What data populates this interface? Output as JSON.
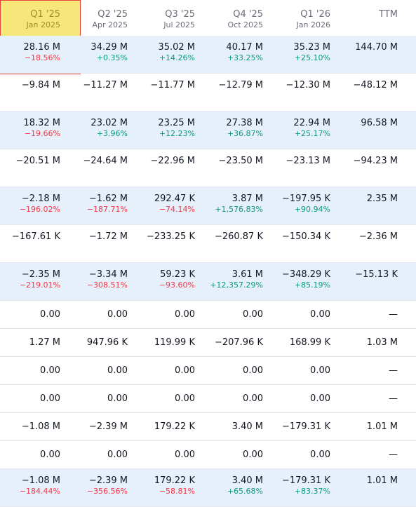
{
  "columns": [
    {
      "title": "Q1 '25",
      "sub": "Jan 2025"
    },
    {
      "title": "Q2 '25",
      "sub": "Apr 2025"
    },
    {
      "title": "Q3 '25",
      "sub": "Jul 2025"
    },
    {
      "title": "Q4 '25",
      "sub": "Oct 2025"
    },
    {
      "title": "Q1 '26",
      "sub": "Jan 2026"
    },
    {
      "title": "TTM",
      "sub": ""
    }
  ],
  "rows": [
    {
      "band": true,
      "cells": [
        {
          "v": "28.16 M",
          "p": "−18.56%",
          "s": "neg"
        },
        {
          "v": "34.29 M",
          "p": "+0.35%",
          "s": "pos"
        },
        {
          "v": "35.02 M",
          "p": "+14.26%",
          "s": "pos"
        },
        {
          "v": "40.17 M",
          "p": "+33.25%",
          "s": "pos"
        },
        {
          "v": "35.23 M",
          "p": "+25.10%",
          "s": "pos"
        },
        {
          "v": "144.70 M",
          "p": "",
          "s": ""
        }
      ]
    },
    {
      "band": false,
      "cells": [
        {
          "v": "−9.84 M"
        },
        {
          "v": "−11.27 M"
        },
        {
          "v": "−11.77 M"
        },
        {
          "v": "−12.79 M"
        },
        {
          "v": "−12.30 M"
        },
        {
          "v": "−48.12 M"
        }
      ]
    },
    {
      "band": true,
      "cells": [
        {
          "v": "18.32 M",
          "p": "−19.66%",
          "s": "neg"
        },
        {
          "v": "23.02 M",
          "p": "+3.96%",
          "s": "pos"
        },
        {
          "v": "23.25 M",
          "p": "+12.23%",
          "s": "pos"
        },
        {
          "v": "27.38 M",
          "p": "+36.87%",
          "s": "pos"
        },
        {
          "v": "22.94 M",
          "p": "+25.17%",
          "s": "pos"
        },
        {
          "v": "96.58 M",
          "p": "",
          "s": ""
        }
      ]
    },
    {
      "band": false,
      "cells": [
        {
          "v": "−20.51 M"
        },
        {
          "v": "−24.64 M"
        },
        {
          "v": "−22.96 M"
        },
        {
          "v": "−23.50 M"
        },
        {
          "v": "−23.13 M"
        },
        {
          "v": "−94.23 M"
        }
      ]
    },
    {
      "band": true,
      "cells": [
        {
          "v": "−2.18 M",
          "p": "−196.02%",
          "s": "neg"
        },
        {
          "v": "−1.62 M",
          "p": "−187.71%",
          "s": "neg"
        },
        {
          "v": "292.47 K",
          "p": "−74.14%",
          "s": "neg"
        },
        {
          "v": "3.87 M",
          "p": "+1,576.83%",
          "s": "pos"
        },
        {
          "v": "−197.95 K",
          "p": "+90.94%",
          "s": "pos"
        },
        {
          "v": "2.35 M",
          "p": "",
          "s": ""
        }
      ]
    },
    {
      "band": false,
      "cells": [
        {
          "v": "−167.61 K"
        },
        {
          "v": "−1.72 M"
        },
        {
          "v": "−233.25 K"
        },
        {
          "v": "−260.87 K"
        },
        {
          "v": "−150.34 K"
        },
        {
          "v": "−2.36 M"
        }
      ]
    },
    {
      "band": true,
      "cells": [
        {
          "v": "−2.35 M",
          "p": "−219.01%",
          "s": "neg"
        },
        {
          "v": "−3.34 M",
          "p": "−308.51%",
          "s": "neg"
        },
        {
          "v": "59.23 K",
          "p": "−93.60%",
          "s": "neg"
        },
        {
          "v": "3.61 M",
          "p": "+12,357.29%",
          "s": "pos"
        },
        {
          "v": "−348.29 K",
          "p": "+85.19%",
          "s": "pos"
        },
        {
          "v": "−15.13 K",
          "p": "",
          "s": ""
        }
      ]
    },
    {
      "band": false,
      "short": true,
      "cells": [
        {
          "v": "0.00"
        },
        {
          "v": "0.00"
        },
        {
          "v": "0.00"
        },
        {
          "v": "0.00"
        },
        {
          "v": "0.00"
        },
        {
          "v": "—"
        }
      ]
    },
    {
      "band": false,
      "short": true,
      "cells": [
        {
          "v": "1.27 M"
        },
        {
          "v": "947.96 K"
        },
        {
          "v": "119.99 K"
        },
        {
          "v": "−207.96 K"
        },
        {
          "v": "168.99 K"
        },
        {
          "v": "1.03 M"
        }
      ]
    },
    {
      "band": false,
      "short": true,
      "cells": [
        {
          "v": "0.00"
        },
        {
          "v": "0.00"
        },
        {
          "v": "0.00"
        },
        {
          "v": "0.00"
        },
        {
          "v": "0.00"
        },
        {
          "v": "—"
        }
      ]
    },
    {
      "band": false,
      "short": true,
      "cells": [
        {
          "v": "0.00"
        },
        {
          "v": "0.00"
        },
        {
          "v": "0.00"
        },
        {
          "v": "0.00"
        },
        {
          "v": "0.00"
        },
        {
          "v": "—"
        }
      ]
    },
    {
      "band": false,
      "short": true,
      "cells": [
        {
          "v": "−1.08 M"
        },
        {
          "v": "−2.39 M"
        },
        {
          "v": "179.22 K"
        },
        {
          "v": "3.40 M"
        },
        {
          "v": "−179.31 K"
        },
        {
          "v": "1.01 M"
        }
      ]
    },
    {
      "band": false,
      "short": true,
      "cells": [
        {
          "v": "0.00"
        },
        {
          "v": "0.00"
        },
        {
          "v": "0.00"
        },
        {
          "v": "0.00"
        },
        {
          "v": "0.00"
        },
        {
          "v": "—"
        }
      ]
    },
    {
      "band": true,
      "cells": [
        {
          "v": "−1.08 M",
          "p": "−184.44%",
          "s": "neg"
        },
        {
          "v": "−2.39 M",
          "p": "−356.56%",
          "s": "neg"
        },
        {
          "v": "179.22 K",
          "p": "−58.81%",
          "s": "neg"
        },
        {
          "v": "3.40 M",
          "p": "+65.68%",
          "s": "pos"
        },
        {
          "v": "−179.31 K",
          "p": "+83.37%",
          "s": "pos"
        },
        {
          "v": "1.01 M",
          "p": "",
          "s": ""
        }
      ]
    }
  ],
  "colors": {
    "band": "#e6f0fb",
    "highlight": "#f7e77a",
    "highlight_border": "#e8423f",
    "positive": "#089981",
    "negative": "#f23645"
  }
}
